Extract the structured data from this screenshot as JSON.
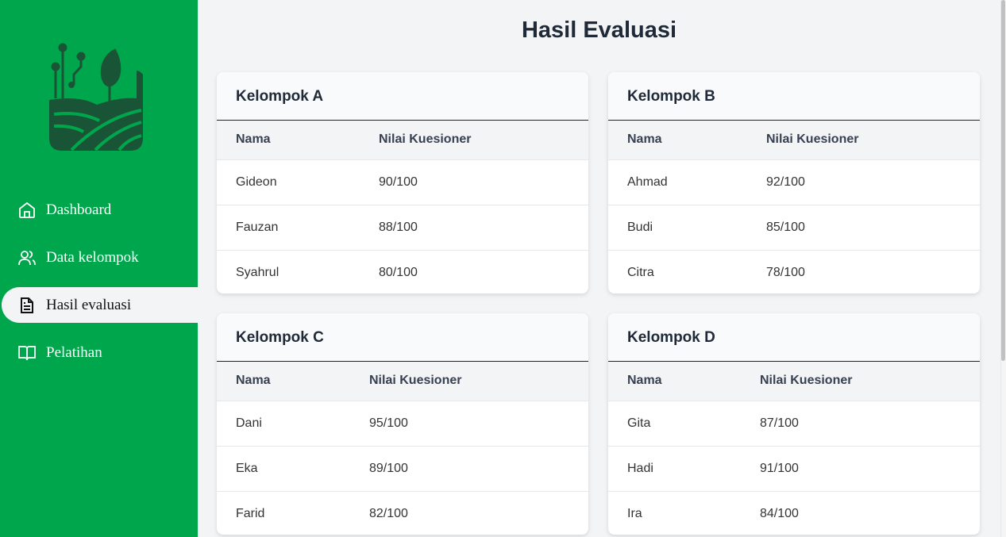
{
  "sidebar": {
    "items": [
      {
        "label": "Dashboard",
        "icon": "home-icon"
      },
      {
        "label": "Data kelompok",
        "icon": "users-icon"
      },
      {
        "label": "Hasil evaluasi",
        "icon": "document-icon",
        "active": true
      },
      {
        "label": "Pelatihan",
        "icon": "book-open-icon"
      }
    ]
  },
  "colors": {
    "sidebar": "#00a64b",
    "logo": "#1a5436",
    "background": "#f3f4f6"
  },
  "page": {
    "title": "Hasil Evaluasi"
  },
  "groups": [
    {
      "title": "Kelompok A",
      "headers": [
        "Nama",
        "Nilai Kuesioner"
      ],
      "rows": [
        [
          "Gideon",
          "90/100"
        ],
        [
          "Fauzan",
          "88/100"
        ],
        [
          "Syahrul",
          "80/100"
        ]
      ]
    },
    {
      "title": "Kelompok B",
      "headers": [
        "Nama",
        "Nilai Kuesioner"
      ],
      "rows": [
        [
          "Ahmad",
          "92/100"
        ],
        [
          "Budi",
          "85/100"
        ],
        [
          "Citra",
          "78/100"
        ]
      ]
    },
    {
      "title": "Kelompok C",
      "headers": [
        "Nama",
        "Nilai Kuesioner"
      ],
      "rows": [
        [
          "Dani",
          "95/100"
        ],
        [
          "Eka",
          "89/100"
        ],
        [
          "Farid",
          "82/100"
        ]
      ]
    },
    {
      "title": "Kelompok D",
      "headers": [
        "Nama",
        "Nilai Kuesioner"
      ],
      "rows": [
        [
          "Gita",
          "87/100"
        ],
        [
          "Hadi",
          "91/100"
        ],
        [
          "Ira",
          "84/100"
        ]
      ]
    }
  ]
}
